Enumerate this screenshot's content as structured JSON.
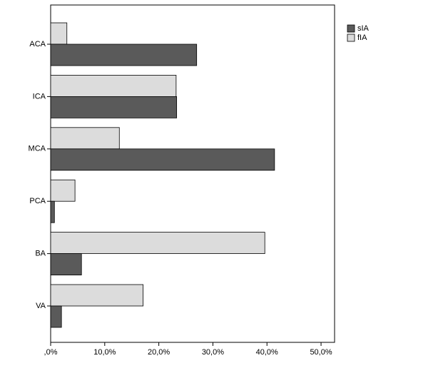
{
  "chart_data": {
    "type": "bar",
    "orientation": "horizontal",
    "categories": [
      "ACA",
      "ICA",
      "MCA",
      "PCA",
      "BA",
      "VA"
    ],
    "series": [
      {
        "name": "sIA",
        "color": "#5a5a5a",
        "values": [
          27.0,
          23.3,
          41.4,
          0.7,
          5.7,
          2.0
        ]
      },
      {
        "name": "fIA",
        "color": "#dcdcdc",
        "values": [
          3.0,
          23.2,
          12.7,
          4.5,
          39.6,
          17.1
        ]
      }
    ],
    "xlim": [
      0,
      52.5
    ],
    "xticks": [
      {
        "value": 0,
        "label": ",0%"
      },
      {
        "value": 10,
        "label": "10,0%"
      },
      {
        "value": 20,
        "label": "20,0%"
      },
      {
        "value": 30,
        "label": "30,0%"
      },
      {
        "value": 40,
        "label": "40,0%"
      },
      {
        "value": 50,
        "label": "50,0%"
      }
    ],
    "grid": false,
    "legend": "upper right"
  }
}
